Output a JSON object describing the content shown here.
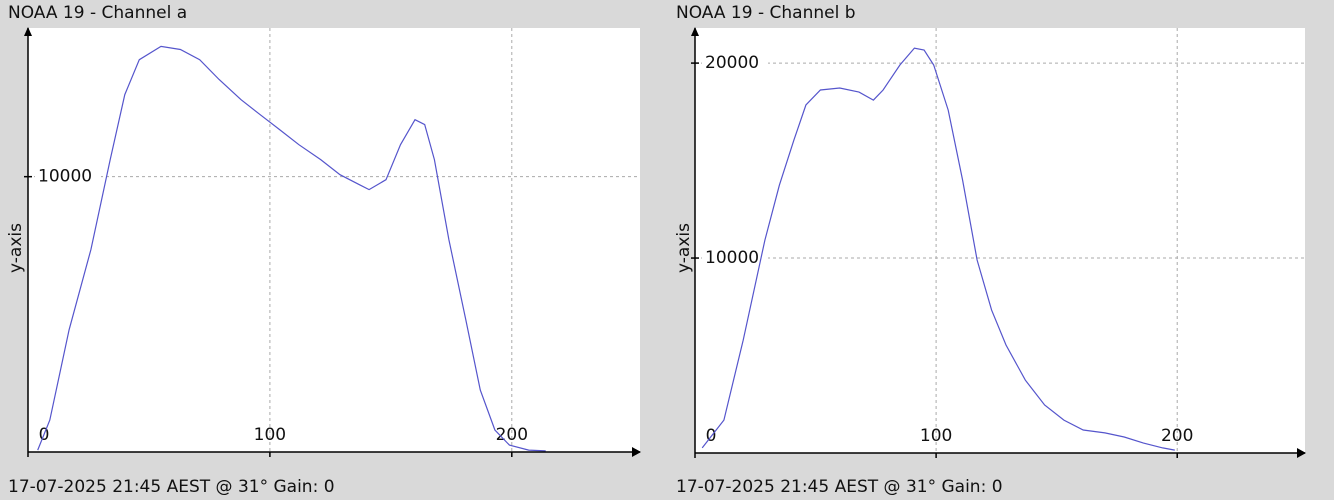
{
  "chart_data": [
    {
      "type": "line",
      "title": "NOAA 19 - Channel a",
      "ylabel": "y-axis",
      "footer": "17-07-2025 21:45 AEST @ 31° Gain: 0",
      "color": "#5555cc",
      "grid": true,
      "xlim": [
        0,
        253
      ],
      "ylim": [
        0,
        15400
      ],
      "xticks": [
        0,
        100,
        200
      ],
      "yticks": [
        10000
      ],
      "x": [
        4,
        9,
        17,
        26,
        34,
        40,
        46,
        55,
        63,
        71,
        79,
        88,
        96,
        104,
        112,
        121,
        129,
        137,
        141,
        148,
        154,
        160,
        164,
        168,
        174,
        181,
        187,
        193,
        199,
        207,
        214
      ],
      "values": [
        70,
        1160,
        4440,
        7350,
        10620,
        12980,
        14250,
        14730,
        14620,
        14250,
        13530,
        12800,
        12250,
        11710,
        11160,
        10620,
        10070,
        9710,
        9530,
        9890,
        11160,
        12070,
        11890,
        10620,
        7710,
        4800,
        2250,
        800,
        250,
        70,
        40
      ]
    },
    {
      "type": "line",
      "title": "NOAA 19 - Channel b",
      "ylabel": "y-axis",
      "footer": "17-07-2025 21:45 AEST @ 31° Gain: 0",
      "color": "#5555cc",
      "grid": true,
      "xlim": [
        0,
        253
      ],
      "ylim": [
        0,
        21800
      ],
      "xticks": [
        0,
        100,
        200
      ],
      "yticks": [
        10000,
        20000
      ],
      "x": [
        3,
        12,
        20,
        29,
        35,
        41,
        46,
        52,
        60,
        68,
        74,
        78,
        85,
        91,
        95,
        99,
        105,
        111,
        117,
        123,
        129,
        137,
        145,
        153,
        161,
        170,
        178,
        186,
        194,
        199
      ],
      "values": [
        260,
        1690,
        5790,
        10920,
        13740,
        16050,
        17850,
        18620,
        18720,
        18510,
        18100,
        18620,
        19900,
        20770,
        20670,
        19900,
        17590,
        14000,
        9900,
        7330,
        5540,
        3740,
        2460,
        1690,
        1180,
        1030,
        820,
        510,
        260,
        150
      ]
    }
  ]
}
